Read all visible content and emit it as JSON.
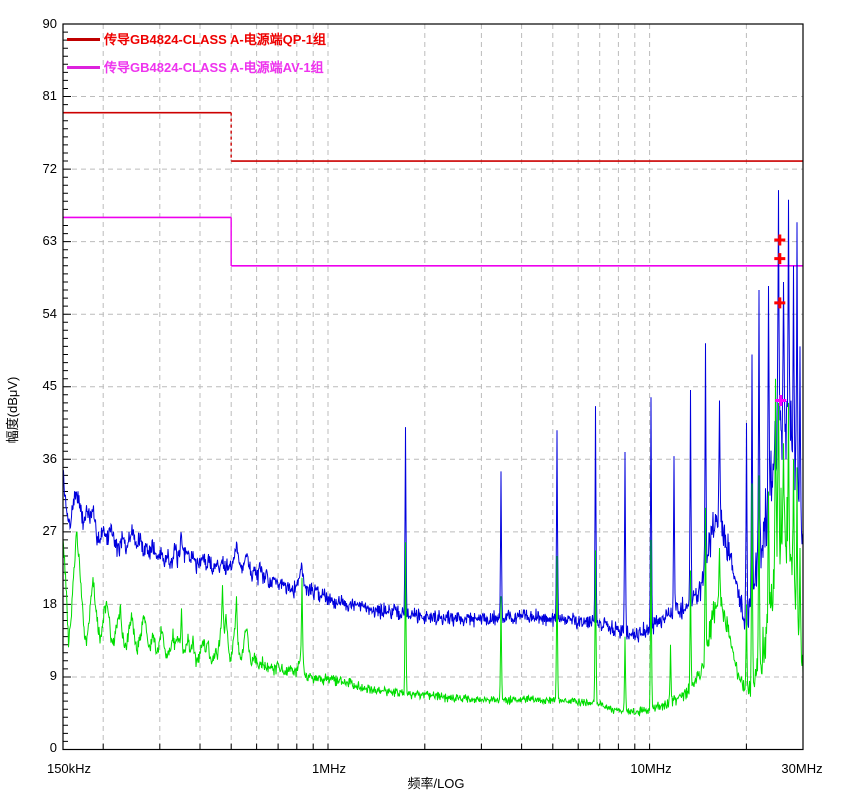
{
  "legend": [
    {
      "label": "传导GB4824-CLASS A-电源端QP-1组",
      "line_color": "#c00000",
      "text_color": "#ee0000"
    },
    {
      "label": "传导GB4824-CLASS A-电源端AV-1组",
      "line_color": "#dd22dd",
      "text_color": "#ee33ee"
    }
  ],
  "axes": {
    "x": {
      "title": "频率/LOG",
      "scale": "log",
      "tick_labels": [
        "150kHz",
        "1MHz",
        "10MHz",
        "30MHz"
      ],
      "tick_kHz": [
        150,
        1000,
        10000,
        30000
      ],
      "grid_kHz": [
        200,
        300,
        400,
        500,
        600,
        700,
        800,
        900,
        1000,
        2000,
        3000,
        4000,
        5000,
        6000,
        7000,
        8000,
        9000,
        10000,
        20000
      ]
    },
    "y": {
      "title": "幅度(dBμV)",
      "tick_labels": [
        "90",
        "81",
        "72",
        "63",
        "54",
        "45",
        "36",
        "27",
        "18",
        "9",
        "0"
      ],
      "tick_dB": [
        90,
        81,
        72,
        63,
        54,
        45,
        36,
        27,
        18,
        9,
        0
      ],
      "grid_dB": [
        81,
        72,
        63,
        54,
        45,
        36,
        27,
        18,
        9
      ],
      "minor_step_dB": 1,
      "range": [
        0,
        90
      ]
    }
  },
  "plot": {
    "bg": "#ffffff",
    "grid_color": "#bcbcbc",
    "border_color": "#000000"
  },
  "chart_data": {
    "type": "line",
    "x_unit": "kHz",
    "y_unit": "dBμV",
    "x_range_kHz": [
      150,
      30000
    ],
    "y_range_dB": [
      0,
      90
    ],
    "x_scale": "log",
    "grid": true,
    "legend_position": "top-left-inside",
    "limits": [
      {
        "name": "QP limit GB4824 CLASS A",
        "color": "#cc0000",
        "step_dashed": true,
        "points_f_dB": [
          150,
          79,
          500,
          79,
          500,
          73,
          30000,
          73
        ]
      },
      {
        "name": "AV limit GB4824 CLASS A",
        "color": "#ee00ee",
        "step_dashed": false,
        "points_f_dB": [
          150,
          66,
          500,
          66,
          500,
          60,
          30000,
          60
        ]
      }
    ],
    "series": [
      {
        "name": "QP trace",
        "color": "#0000dd",
        "seed": 7,
        "midline_f_dB": [
          150,
          34.5,
          154,
          29,
          158,
          28,
          162,
          31,
          166,
          32,
          170,
          29.5,
          174,
          28,
          178,
          30,
          182,
          28.5,
          186,
          29.5,
          190,
          27,
          195,
          26,
          200,
          27.5,
          206,
          26,
          212,
          27.8,
          218,
          25.5,
          224,
          24.8,
          230,
          26.3,
          236,
          24.6,
          242,
          26.5,
          248,
          27.2,
          254,
          25.2,
          260,
          26.2,
          266,
          24.6,
          272,
          25.4,
          278,
          24.2,
          284,
          25.6,
          290,
          24.2,
          296,
          23.6,
          302,
          24.8,
          310,
          23.2,
          318,
          24.4,
          326,
          23,
          334,
          24.8,
          342,
          23.4,
          350,
          26,
          358,
          24,
          366,
          25.2,
          374,
          23.2,
          382,
          24.2,
          390,
          22.8,
          400,
          23.2,
          410,
          24,
          420,
          22.6,
          430,
          23.6,
          440,
          22.2,
          450,
          23.2,
          460,
          22.4,
          470,
          23.8,
          480,
          22.6,
          490,
          23.4,
          500,
          22.4,
          510,
          23.8,
          520,
          25.2,
          530,
          23.2,
          540,
          22.4,
          550,
          23.6,
          560,
          24.4,
          570,
          22.4,
          580,
          21.6,
          590,
          22.6,
          600,
          21.2,
          615,
          22.2,
          630,
          21,
          645,
          21.8,
          660,
          20.6,
          680,
          21.4,
          700,
          20.2,
          720,
          21,
          740,
          20,
          760,
          20.6,
          780,
          19.8,
          800,
          20.4,
          815,
          21.5,
          830,
          23,
          845,
          20,
          860,
          19.6,
          880,
          20.2,
          900,
          19.4,
          925,
          19.8,
          950,
          19,
          975,
          19.4,
          1000,
          18.8,
          1050,
          18.4,
          1100,
          18.3,
          1200,
          17.9,
          1300,
          17.6,
          1400,
          17.3,
          1500,
          17.2,
          1600,
          17,
          1700,
          16.9,
          1800,
          16.8,
          1900,
          16.7,
          2000,
          16.5,
          2200,
          16.4,
          2400,
          16.3,
          2600,
          16.3,
          2800,
          16.2,
          3000,
          16.2,
          3300,
          16.3,
          3600,
          16.4,
          4000,
          16.5,
          4400,
          16.4,
          4800,
          16.3,
          5200,
          16.2,
          5600,
          16.1,
          6000,
          16,
          6400,
          15.8,
          6800,
          15.6,
          7200,
          15.4,
          7600,
          15.1,
          8000,
          14.8,
          8400,
          14.6,
          8800,
          14.4,
          9200,
          14.4,
          9600,
          14.7,
          10000,
          15.1,
          10400,
          15.6,
          10800,
          16,
          11200,
          16.3,
          11600,
          16.6,
          12000,
          17,
          12400,
          17.3,
          12800,
          17.7,
          13200,
          18,
          13600,
          18.5,
          14000,
          19.2,
          14400,
          20.2,
          14800,
          21.8,
          15200,
          24,
          15600,
          26.6,
          16000,
          28.4,
          16300,
          29.2,
          16600,
          28.6,
          17000,
          27.2,
          17400,
          25.4,
          17800,
          23.6,
          18200,
          22.2,
          18600,
          20.8,
          19000,
          19.2,
          19400,
          17.6,
          19800,
          16.2,
          20200,
          16,
          20600,
          17.5,
          21000,
          20,
          21400,
          22,
          21800,
          24,
          22200,
          25,
          22600,
          26,
          23000,
          28,
          23400,
          30,
          23800,
          32,
          24200,
          34.5,
          24600,
          37,
          25000,
          40,
          25400,
          41,
          25800,
          40,
          26200,
          41,
          26600,
          41.5,
          27000,
          41,
          27400,
          39,
          27800,
          37,
          28200,
          34,
          28600,
          31,
          29000,
          28.5,
          29400,
          27,
          29700,
          26.5,
          30000,
          26
        ],
        "noise_amp_f_dB": [
          150,
          1.5,
          300,
          1.4,
          600,
          1.3,
          1000,
          1.2,
          3000,
          1.2,
          7000,
          1.2,
          10000,
          1.3,
          13000,
          1.6,
          14800,
          2.2,
          16300,
          2.8,
          17500,
          2.4,
          19000,
          1.8,
          20000,
          1.8,
          21000,
          3,
          22000,
          4,
          23000,
          5,
          24000,
          6,
          25000,
          7,
          26000,
          7,
          27000,
          6,
          28000,
          5.5,
          29000,
          4,
          30000,
          3
        ],
        "spikes_f_dB": [
          [
            1740,
            40
          ],
          [
            3450,
            34.5
          ],
          [
            5150,
            39.6
          ],
          [
            6800,
            42.6
          ],
          [
            8400,
            36.9
          ],
          [
            10100,
            43.7
          ],
          [
            11900,
            36.4
          ],
          [
            13400,
            44.6
          ],
          [
            14900,
            50.4
          ],
          [
            16500,
            43.3
          ],
          [
            20000,
            40.5
          ],
          [
            20800,
            49
          ],
          [
            21900,
            57
          ],
          [
            23400,
            57.5
          ],
          [
            25200,
            69.4
          ],
          [
            26100,
            58
          ],
          [
            27000,
            68.2
          ],
          [
            28000,
            60
          ],
          [
            28700,
            65.4
          ],
          [
            29400,
            50
          ]
        ]
      },
      {
        "name": "AV trace",
        "color": "#00dd00",
        "seed": 13,
        "midline_f_dB": [
          150,
          26.5,
          153,
          21,
          156,
          13.5,
          159,
          16,
          162,
          22,
          165,
          26.8,
          168,
          24,
          171,
          19,
          174,
          15.5,
          177,
          13.2,
          180,
          15.5,
          183,
          18.5,
          186,
          20.8,
          189,
          18.5,
          192,
          15.5,
          195,
          13.8,
          198,
          15,
          202,
          17.2,
          206,
          18,
          210,
          15.2,
          214,
          12.8,
          218,
          13.8,
          222,
          16.2,
          226,
          17.4,
          230,
          14.4,
          234,
          12.2,
          238,
          13.6,
          242,
          15.8,
          246,
          16.6,
          250,
          14.2,
          254,
          12,
          258,
          13,
          262,
          14.8,
          266,
          15.8,
          270,
          16.4,
          274,
          14,
          278,
          12.4,
          282,
          13.2,
          286,
          14.6,
          290,
          12.6,
          295,
          11.8,
          300,
          13.8,
          305,
          14.8,
          310,
          12.6,
          315,
          11.6,
          320,
          12.2,
          325,
          13.2,
          330,
          14.4,
          335,
          12.4,
          340,
          14.6,
          345,
          13,
          350,
          13.8,
          356,
          11.8,
          362,
          12.6,
          368,
          13.6,
          374,
          12,
          380,
          13.4,
          386,
          11.6,
          392,
          10.8,
          398,
          11.6,
          404,
          12.6,
          410,
          13.6,
          416,
          12,
          422,
          13.8,
          428,
          12.2,
          434,
          10.8,
          440,
          11.6,
          446,
          12.4,
          452,
          11.2,
          458,
          12.8,
          464,
          14.6,
          470,
          16.8,
          476,
          15,
          482,
          16.4,
          488,
          13.6,
          494,
          11.8,
          500,
          11.2,
          506,
          12.6,
          512,
          14.4,
          518,
          16,
          524,
          13.4,
          530,
          11.6,
          536,
          10.8,
          542,
          11.8,
          548,
          13.2,
          554,
          14.6,
          560,
          15.2,
          566,
          12.6,
          572,
          11.2,
          578,
          10.4,
          584,
          11,
          590,
          11.6,
          600,
          10.8,
          615,
          10.4,
          630,
          10.8,
          645,
          10,
          660,
          10.4,
          680,
          9.8,
          700,
          10.4,
          720,
          9.8,
          740,
          9.6,
          760,
          9.9,
          780,
          9.4,
          800,
          9.7,
          815,
          10.5,
          830,
          12,
          845,
          9.5,
          860,
          9,
          880,
          9.3,
          900,
          8.8,
          930,
          8.9,
          960,
          8.6,
          1000,
          8.9,
          1100,
          8.4,
          1200,
          8.1,
          1300,
          7.7,
          1400,
          7.4,
          1500,
          7.3,
          1600,
          7.1,
          1700,
          7,
          1800,
          6.9,
          1900,
          6.8,
          2000,
          6.7,
          2200,
          6.5,
          2400,
          6.4,
          2600,
          6.3,
          2800,
          6.3,
          3000,
          6.2,
          3400,
          6.2,
          3800,
          6.1,
          4200,
          6.2,
          4600,
          6.1,
          5000,
          6.1,
          5400,
          6,
          5800,
          6,
          6200,
          5.9,
          6600,
          5.8,
          7000,
          5.6,
          7400,
          5.2,
          7800,
          4.9,
          8200,
          4.8,
          8600,
          4.8,
          9000,
          4.7,
          9400,
          4.8,
          9800,
          5,
          10200,
          5.2,
          10600,
          5.3,
          11000,
          5.5,
          11400,
          5.7,
          11800,
          6,
          12200,
          6.3,
          12600,
          6.7,
          13000,
          7.1,
          13400,
          7.6,
          13800,
          8.2,
          14200,
          8.9,
          14600,
          10,
          15000,
          11.8,
          15400,
          14.5,
          15800,
          16.8,
          16200,
          18,
          16500,
          18.2,
          16800,
          17.6,
          17200,
          16.2,
          17600,
          14.4,
          18000,
          12.6,
          18400,
          11,
          18800,
          9.6,
          19200,
          8.4,
          19600,
          7.5,
          20000,
          7,
          20400,
          7.2,
          20800,
          8,
          21200,
          9,
          21600,
          10,
          22000,
          11,
          22400,
          11.8,
          22800,
          12.8,
          23200,
          14,
          23600,
          16,
          24000,
          18.5,
          24400,
          22,
          24800,
          26,
          25200,
          28,
          25600,
          27,
          26000,
          26,
          26400,
          28,
          26800,
          26.5,
          27200,
          25,
          27600,
          23,
          28000,
          21,
          28400,
          18,
          28800,
          15,
          29200,
          13,
          29600,
          11.5,
          30000,
          10.5
        ],
        "noise_amp_f_dB": [
          150,
          1.2,
          400,
          1.1,
          1000,
          0.8,
          3000,
          0.6,
          8000,
          0.6,
          12000,
          0.8,
          14000,
          1.2,
          15500,
          2,
          16300,
          2.2,
          17500,
          1.8,
          19000,
          1,
          20000,
          1.2,
          21000,
          2.5,
          22000,
          3,
          23000,
          4,
          24000,
          6,
          25000,
          7,
          26000,
          6.5,
          27000,
          6,
          28000,
          5,
          29000,
          3.5,
          30000,
          2.5
        ],
        "spikes_f_dB": [
          [
            350,
            17.5
          ],
          [
            470,
            20.4
          ],
          [
            520,
            19
          ],
          [
            830,
            21.3
          ],
          [
            1740,
            25.7
          ],
          [
            3450,
            19
          ],
          [
            5150,
            24
          ],
          [
            6800,
            24.7
          ],
          [
            8400,
            14
          ],
          [
            10100,
            26
          ],
          [
            11600,
            13
          ],
          [
            13400,
            22.2
          ],
          [
            14900,
            30
          ],
          [
            16500,
            25
          ],
          [
            20000,
            18
          ],
          [
            20800,
            33
          ],
          [
            21900,
            34
          ],
          [
            23400,
            32
          ],
          [
            24600,
            46
          ],
          [
            25200,
            43
          ],
          [
            26100,
            38
          ],
          [
            27000,
            43
          ],
          [
            28000,
            36
          ],
          [
            28700,
            35
          ],
          [
            29400,
            25
          ]
        ]
      }
    ],
    "markers": [
      {
        "name": "QP readings",
        "shape": "plus",
        "color": "#ff0000",
        "points_f_dB": [
          [
            25400,
            63.2
          ],
          [
            25400,
            60.9
          ],
          [
            25400,
            55.4
          ]
        ]
      },
      {
        "name": "AV reading",
        "shape": "plus",
        "color": "#ff00ff",
        "points_f_dB": [
          [
            25600,
            43.3
          ]
        ]
      }
    ]
  }
}
